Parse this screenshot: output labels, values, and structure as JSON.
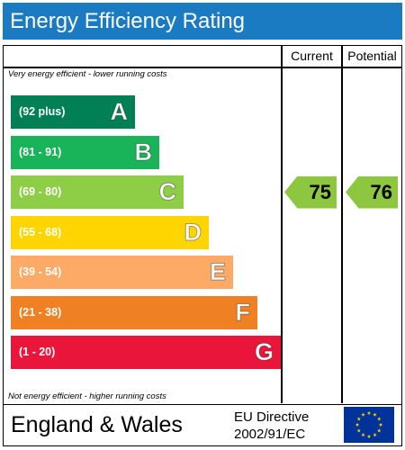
{
  "title": "Energy Efficiency Rating",
  "columns": {
    "current": "Current",
    "potential": "Potential"
  },
  "top_note": "Very energy efficient - lower running costs",
  "bottom_note": "Not energy efficient - higher running costs",
  "chart_data": {
    "type": "bar",
    "categories": [
      "A",
      "B",
      "C",
      "D",
      "E",
      "F",
      "G"
    ],
    "ranges": [
      "(92 plus)",
      "(81 - 91)",
      "(69 - 80)",
      "(55 - 68)",
      "(39 - 54)",
      "(21 - 38)",
      "(1 - 20)"
    ],
    "colors": [
      "#008054",
      "#19b459",
      "#8dce46",
      "#ffd500",
      "#fcaa65",
      "#ef8023",
      "#e9153b"
    ],
    "current_rating": 75,
    "current_band": "C",
    "potential_rating": 76,
    "potential_band": "C"
  },
  "footer": {
    "region": "England & Wales",
    "directive_line1": "EU Directive",
    "directive_line2": "2002/91/EC"
  },
  "colors": {
    "title_bar": "#1a7ac2",
    "arrow": "#8dc63f",
    "eu_blue": "#003399",
    "eu_star": "#ffcc00"
  }
}
